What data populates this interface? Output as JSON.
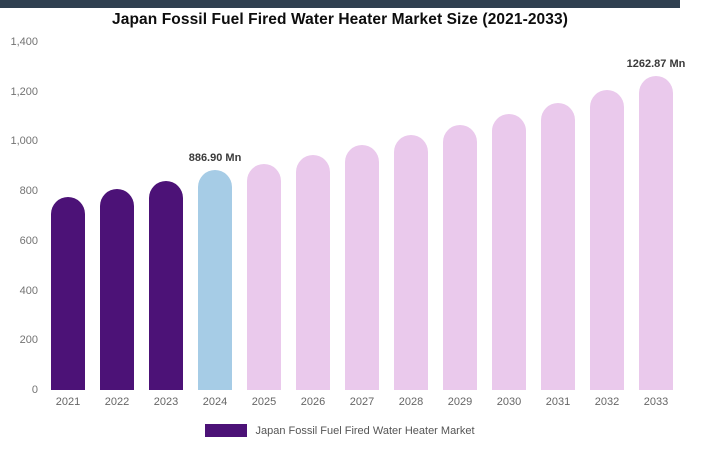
{
  "title": "Japan Fossil Fuel Fired Water Heater Market Size (2021-2033)",
  "colors": {
    "topbar": "#2f4050",
    "historical_bar": "#4c1277",
    "highlight_bar": "#a6cce6",
    "forecast_bar": "#eac9ec",
    "axis_text": "#737373",
    "annotation_text": "#3a3a3a"
  },
  "chart_data": {
    "type": "bar",
    "title": "Japan Fossil Fuel Fired Water Heater Market Size (2021-2033)",
    "categories": [
      "2021",
      "2022",
      "2023",
      "2024",
      "2025",
      "2026",
      "2027",
      "2028",
      "2029",
      "2030",
      "2031",
      "2032",
      "2033"
    ],
    "values": [
      775,
      808,
      840,
      886.9,
      910,
      945,
      985,
      1025,
      1065,
      1110,
      1155,
      1205,
      1262.87
    ],
    "unit": "Mn",
    "ylim": [
      0,
      1400
    ],
    "ytick_step": 200,
    "ytick_labels": [
      "0",
      "200",
      "400",
      "600",
      "800",
      "1,000",
      "1,200",
      "1,400"
    ],
    "grid": false,
    "legend_position": "bottom",
    "series_colors": {
      "historical": "#4c1277",
      "highlight": "#a6cce6",
      "forecast": "#eac9ec"
    },
    "bar_roles": [
      "historical",
      "historical",
      "historical",
      "highlight",
      "forecast",
      "forecast",
      "forecast",
      "forecast",
      "forecast",
      "forecast",
      "forecast",
      "forecast",
      "forecast"
    ],
    "annotations": [
      {
        "index": 3,
        "label": "886.90 Mn"
      },
      {
        "index": 12,
        "label": "1262.87 Mn"
      }
    ],
    "legend": {
      "label": "Japan Fossil Fuel Fired Water Heater Market",
      "swatch_color": "#4c1277"
    }
  }
}
